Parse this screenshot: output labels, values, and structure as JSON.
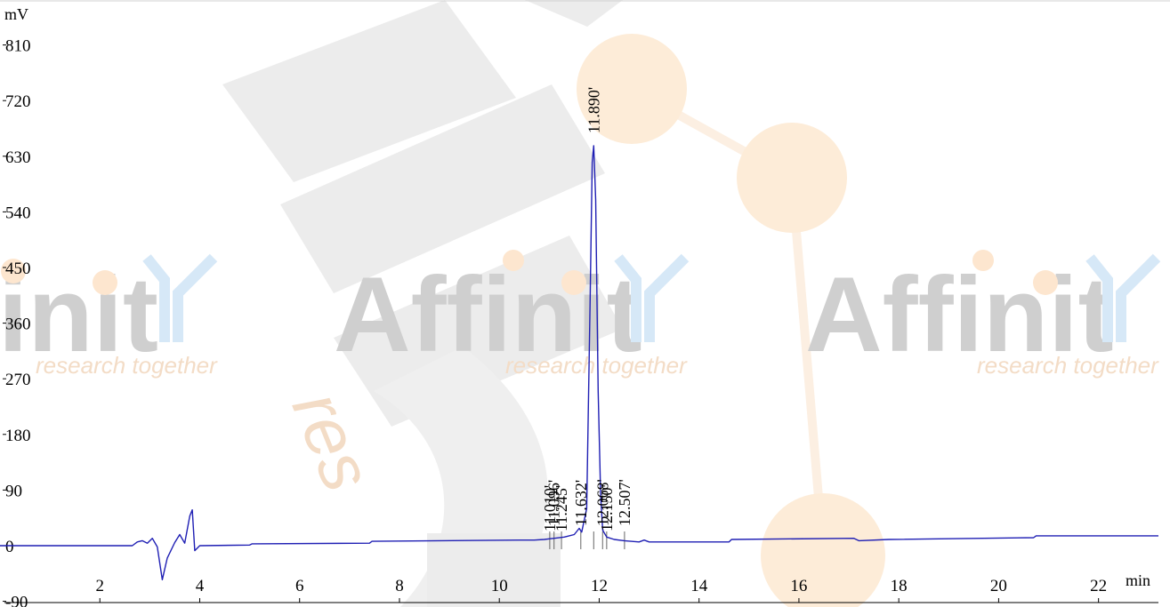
{
  "watermark": {
    "brand_fragment": "init",
    "brand": "Affinit",
    "tagline": "research together",
    "vertical_word": "res"
  },
  "chart_data": {
    "type": "line",
    "xlabel": "min",
    "ylabel": "mV",
    "xlim": [
      0,
      23.2
    ],
    "ylim": [
      -90,
      855
    ],
    "x_ticks": [
      2,
      4,
      6,
      8,
      10,
      12,
      14,
      16,
      18,
      20,
      22
    ],
    "y_ticks": [
      -90,
      0,
      90,
      180,
      270,
      360,
      450,
      540,
      630,
      720,
      810
    ],
    "line_color": "#1f1fb4",
    "grid": false,
    "series": [
      {
        "points": [
          [
            0,
            0
          ],
          [
            2.65,
            0
          ],
          [
            2.75,
            6
          ],
          [
            2.85,
            8
          ],
          [
            2.95,
            4
          ],
          [
            3.05,
            12
          ],
          [
            3.15,
            -2
          ],
          [
            3.25,
            -55
          ],
          [
            3.35,
            -20
          ],
          [
            3.5,
            5
          ],
          [
            3.6,
            18
          ],
          [
            3.7,
            4
          ],
          [
            3.8,
            48
          ],
          [
            3.85,
            58
          ],
          [
            3.9,
            -8
          ],
          [
            4.0,
            0
          ],
          [
            5.0,
            1
          ],
          [
            5.05,
            3
          ],
          [
            7.4,
            4
          ],
          [
            7.45,
            7
          ],
          [
            10.4,
            9
          ],
          [
            10.7,
            9
          ],
          [
            10.9,
            10
          ],
          [
            11.0,
            11
          ],
          [
            11.1,
            12
          ],
          [
            11.3,
            14
          ],
          [
            11.5,
            18
          ],
          [
            11.6,
            28
          ],
          [
            11.65,
            22
          ],
          [
            11.75,
            60
          ],
          [
            11.82,
            400
          ],
          [
            11.86,
            620
          ],
          [
            11.89,
            647
          ],
          [
            11.93,
            560
          ],
          [
            11.98,
            250
          ],
          [
            12.03,
            80
          ],
          [
            12.07,
            25
          ],
          [
            12.15,
            14
          ],
          [
            12.3,
            10
          ],
          [
            12.5,
            8
          ],
          [
            12.8,
            6
          ],
          [
            12.9,
            9
          ],
          [
            13.0,
            6
          ],
          [
            14.6,
            6
          ],
          [
            14.65,
            10
          ],
          [
            17.1,
            12
          ],
          [
            17.2,
            8
          ],
          [
            17.8,
            10
          ],
          [
            20.7,
            13
          ],
          [
            20.75,
            16
          ],
          [
            23.2,
            16
          ]
        ]
      }
    ],
    "peaks": [
      {
        "label": "11.010'",
        "x": 11.01
      },
      {
        "label": "11.096'",
        "x": 11.096
      },
      {
        "label": "11.245'",
        "x": 11.245
      },
      {
        "label": "11.632'",
        "x": 11.632
      },
      {
        "label": "11.890'",
        "x": 11.89
      },
      {
        "label": "12.068'",
        "x": 12.068
      },
      {
        "label": "12.150'",
        "x": 12.15
      },
      {
        "label": "12.507'",
        "x": 12.507
      }
    ]
  }
}
